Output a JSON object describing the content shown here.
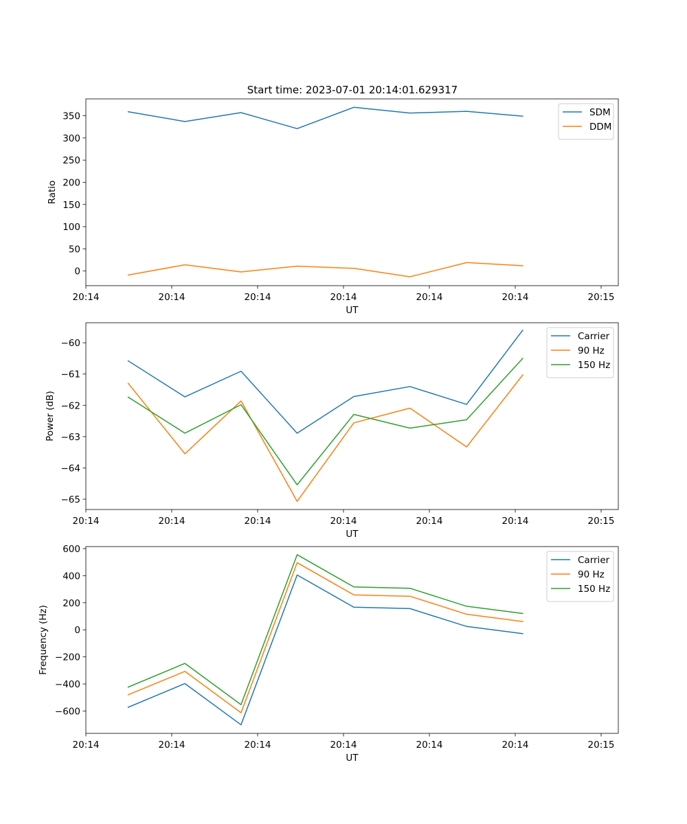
{
  "figure_title": "Start time: 2023-07-01 20:14:01.629317",
  "colors": {
    "blue": "#1f77b4",
    "orange": "#ff7f0e",
    "green": "#2ca02c"
  },
  "chart_data": [
    {
      "type": "line",
      "id": "ratio",
      "title": "Start time: 2023-07-01 20:14:01.629317",
      "xlabel": "UT",
      "ylabel": "Ratio",
      "xlim": [
        0,
        9.3
      ],
      "ylim": [
        -33,
        388
      ],
      "x_ticks": [
        0,
        1.5,
        3,
        4.5,
        6,
        7.5,
        9
      ],
      "x_tick_labels": [
        "20:14",
        "20:14",
        "20:14",
        "20:14",
        "20:14",
        "20:14",
        "20:15"
      ],
      "y_ticks": [
        0,
        50,
        100,
        150,
        200,
        250,
        300,
        350
      ],
      "y_tick_labels": [
        "0",
        "50",
        "100",
        "150",
        "200",
        "250",
        "300",
        "350"
      ],
      "x": [
        0.74,
        1.73,
        2.71,
        3.69,
        4.68,
        5.66,
        6.65,
        7.63
      ],
      "series": [
        {
          "name": "SDM",
          "color": "#1f77b4",
          "values": [
            359,
            337,
            357,
            321,
            369,
            356,
            360,
            349
          ]
        },
        {
          "name": "DDM",
          "color": "#ff7f0e",
          "values": [
            -9,
            14,
            -2,
            11,
            6,
            -13,
            19,
            12
          ]
        }
      ],
      "legend": "top-right"
    },
    {
      "type": "line",
      "id": "power",
      "title": "",
      "xlabel": "UT",
      "ylabel": "Power (dB)",
      "xlim": [
        0,
        9.3
      ],
      "ylim": [
        -65.33,
        -59.36
      ],
      "x_ticks": [
        0,
        1.5,
        3,
        4.5,
        6,
        7.5,
        9
      ],
      "x_tick_labels": [
        "20:14",
        "20:14",
        "20:14",
        "20:14",
        "20:14",
        "20:14",
        "20:15"
      ],
      "y_ticks": [
        -65,
        -64,
        -63,
        -62,
        -61,
        -60
      ],
      "y_tick_labels": [
        "−65",
        "−64",
        "−63",
        "−62",
        "−61",
        "−60"
      ],
      "x": [
        0.74,
        1.73,
        2.71,
        3.69,
        4.68,
        5.66,
        6.65,
        7.63
      ],
      "series": [
        {
          "name": "Carrier",
          "color": "#1f77b4",
          "values": [
            -60.58,
            -61.73,
            -60.91,
            -62.89,
            -61.72,
            -61.4,
            -61.97,
            -59.6
          ]
        },
        {
          "name": "90 Hz",
          "color": "#ff7f0e",
          "values": [
            -61.3,
            -63.55,
            -61.86,
            -65.07,
            -62.56,
            -62.09,
            -63.33,
            -61.03
          ]
        },
        {
          "name": "150 Hz",
          "color": "#2ca02c",
          "values": [
            -61.74,
            -62.89,
            -61.98,
            -64.54,
            -62.29,
            -62.73,
            -62.46,
            -60.5
          ]
        }
      ],
      "legend": "top-right"
    },
    {
      "type": "line",
      "id": "frequency",
      "title": "",
      "xlabel": "UT",
      "ylabel": "Frequency (Hz)",
      "xlim": [
        0,
        9.3
      ],
      "ylim": [
        -765,
        615
      ],
      "x_ticks": [
        0,
        1.5,
        3,
        4.5,
        6,
        7.5,
        9
      ],
      "x_tick_labels": [
        "20:14",
        "20:14",
        "20:14",
        "20:14",
        "20:14",
        "20:14",
        "20:15"
      ],
      "y_ticks": [
        -600,
        -400,
        -200,
        0,
        200,
        400,
        600
      ],
      "y_tick_labels": [
        "−600",
        "−400",
        "−200",
        "0",
        "200",
        "400",
        "600"
      ],
      "x": [
        0.74,
        1.73,
        2.71,
        3.69,
        4.68,
        5.66,
        6.65,
        7.63
      ],
      "series": [
        {
          "name": "Carrier",
          "color": "#1f77b4",
          "values": [
            -572,
            -397,
            -702,
            405,
            167,
            157,
            25,
            -28
          ]
        },
        {
          "name": "90 Hz",
          "color": "#ff7f0e",
          "values": [
            -480,
            -307,
            -613,
            496,
            258,
            248,
            115,
            61
          ]
        },
        {
          "name": "150 Hz",
          "color": "#2ca02c",
          "values": [
            -423,
            -248,
            -553,
            555,
            317,
            307,
            174,
            121
          ]
        }
      ],
      "legend": "top-right"
    }
  ]
}
